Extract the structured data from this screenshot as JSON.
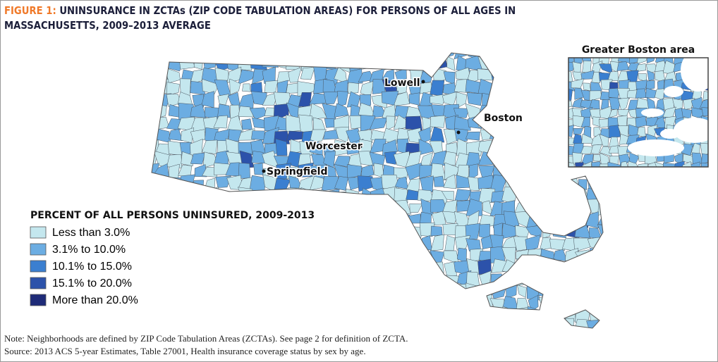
{
  "figure": {
    "label": "FIGURE 1:",
    "title": "UNINSURANCE IN ZCTAs (ZIP CODE TABULATION AREAS) FOR PERSONS OF ALL AGES IN MASSACHUSETTS, 2009–2013 AVERAGE"
  },
  "legend": {
    "title": "PERCENT OF ALL PERSONS UNINSURED, 2009-2013",
    "items": [
      {
        "label": "Less than 3.0%",
        "color": "#c4e7ee"
      },
      {
        "label": "3.1% to 10.0%",
        "color": "#6cade2"
      },
      {
        "label": "10.1% to 15.0%",
        "color": "#3b7fd0"
      },
      {
        "label": "15.1% to 20.0%",
        "color": "#2c52aa"
      },
      {
        "label": "More than 20.0%",
        "color": "#1e2b78"
      }
    ]
  },
  "cities": [
    "Lowell",
    "Boston",
    "Worcester",
    "Springfield"
  ],
  "inset": {
    "title": "Greater Boston area"
  },
  "notes": [
    "Note: Neighborhoods are defined by ZIP Code Tabulation Areas (ZCTAs). See page 2 for definition of ZCTA.",
    "Source: 2013 ACS 5-year Estimates, Table 27001, Health insurance coverage status by sex by age."
  ]
}
